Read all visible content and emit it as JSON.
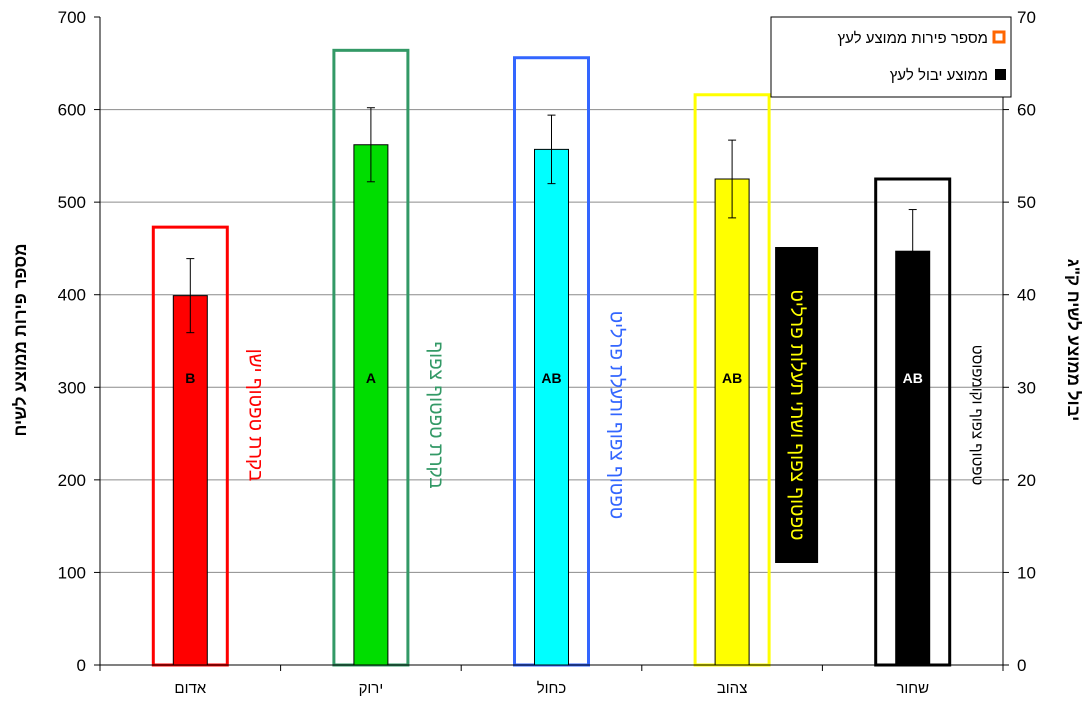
{
  "chart_data": {
    "type": "bar",
    "categories": [
      "אדום",
      "ירוק",
      "כחול",
      "צהוב",
      "שחור"
    ],
    "y_left": {
      "label": "מספר פירות ממוצע לשיח",
      "lim": [
        0,
        700
      ],
      "ticks": [
        0,
        100,
        200,
        300,
        400,
        500,
        600,
        700
      ]
    },
    "y_right": {
      "label": "יבול ממוצע לשיח ק\"ג",
      "lim": [
        0,
        70
      ],
      "ticks": [
        0,
        10,
        20,
        30,
        40,
        50,
        60,
        70
      ]
    },
    "grid": true,
    "legend_position": "top-right",
    "series": [
      {
        "name": "מספר פירות ממוצע לעץ",
        "axis": "left",
        "style": "hollow",
        "values": [
          473,
          664,
          656,
          616,
          525
        ]
      },
      {
        "name": "ממוצע יבול לעץ",
        "axis": "right",
        "style": "filled",
        "values": [
          39.9,
          56.2,
          55.7,
          52.5,
          44.7
        ],
        "error": [
          4.0,
          4.0,
          3.7,
          4.2,
          4.5
        ]
      }
    ],
    "bar_colors": [
      "#ff0000",
      "#00dd00",
      "#00ffff",
      "#ffff00",
      "#000000"
    ],
    "outline_colors": [
      "#ff0000",
      "#339966",
      "#3366ff",
      "#ffff00",
      "#000000"
    ],
    "significance_letters": [
      "B",
      "A",
      "AB",
      "AB",
      "AB"
    ],
    "annotations": [
      {
        "text": "בקרת טפטוף ישן",
        "color": "#ff0000",
        "box": null
      },
      {
        "text": "בקרת טפטוף צפוף",
        "color": "#339966",
        "box": null
      },
      {
        "text": "טפטוף צפוף ותעלת פרליט",
        "color": "#3366ff",
        "box": null
      },
      {
        "text": "טפטוף צפוף ושתי תעלות פרליט",
        "color": "#ffff00",
        "box": "#000000"
      },
      {
        "text": "טפטוף צפוף וקומפוסט",
        "color": "#000000",
        "box": null
      }
    ]
  }
}
